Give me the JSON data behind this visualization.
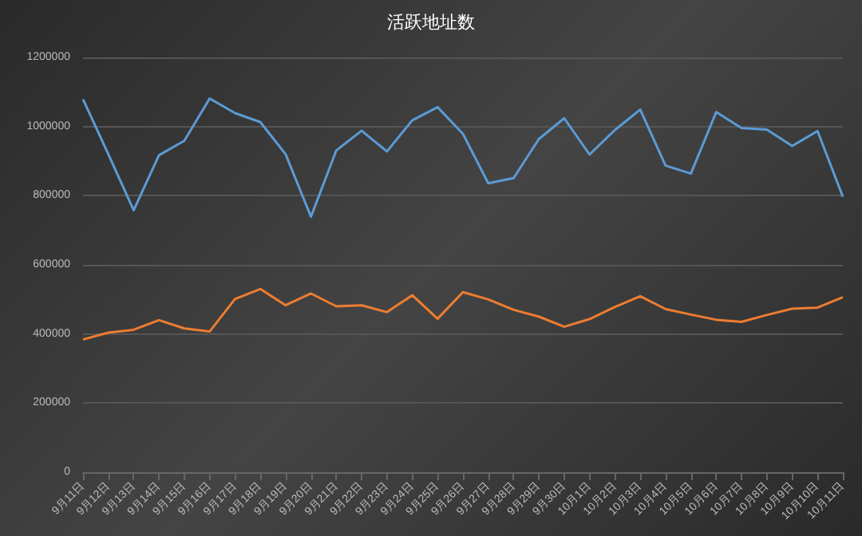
{
  "chart_data": {
    "type": "line",
    "title": "活跃地址数",
    "categories": [
      "9月11日",
      "9月12日",
      "9月13日",
      "9月14日",
      "9月15日",
      "9月16日",
      "9月17日",
      "9月18日",
      "9月19日",
      "9月20日",
      "9月21日",
      "9月22日",
      "9月23日",
      "9月24日",
      "9月25日",
      "9月26日",
      "9月27日",
      "9月28日",
      "9月29日",
      "9月30日",
      "10月1日",
      "10月2日",
      "10月3日",
      "10月4日",
      "10月5日",
      "10月6日",
      "10月7日",
      "10月8日",
      "10月9日",
      "10月10日",
      "10月11日"
    ],
    "series": [
      {
        "color": "#5b9bd5",
        "values": [
          1079000,
          920000,
          758000,
          917000,
          959000,
          1081000,
          1039000,
          1013000,
          920000,
          739000,
          931000,
          988000,
          928000,
          1018000,
          1056000,
          979000,
          836000,
          851000,
          964000,
          1024000,
          919000,
          990000,
          1049000,
          887000,
          864000,
          1042000,
          996000,
          991000,
          944000,
          987000,
          797000
        ]
      },
      {
        "color": "#ed7d31",
        "values": [
          384000,
          404000,
          412000,
          440000,
          416000,
          407000,
          501000,
          530000,
          483000,
          517000,
          480000,
          483000,
          463000,
          512000,
          444000,
          521000,
          500000,
          470000,
          450000,
          421000,
          443000,
          478000,
          509000,
          472000,
          456000,
          441000,
          435000,
          455000,
          473000,
          476000,
          506000
        ]
      }
    ],
    "ylim": [
      0,
      1200000
    ],
    "yticks": [
      0,
      200000,
      400000,
      600000,
      800000,
      1000000,
      1200000
    ],
    "grid": "y",
    "marker": "none",
    "line_style": "solid"
  }
}
